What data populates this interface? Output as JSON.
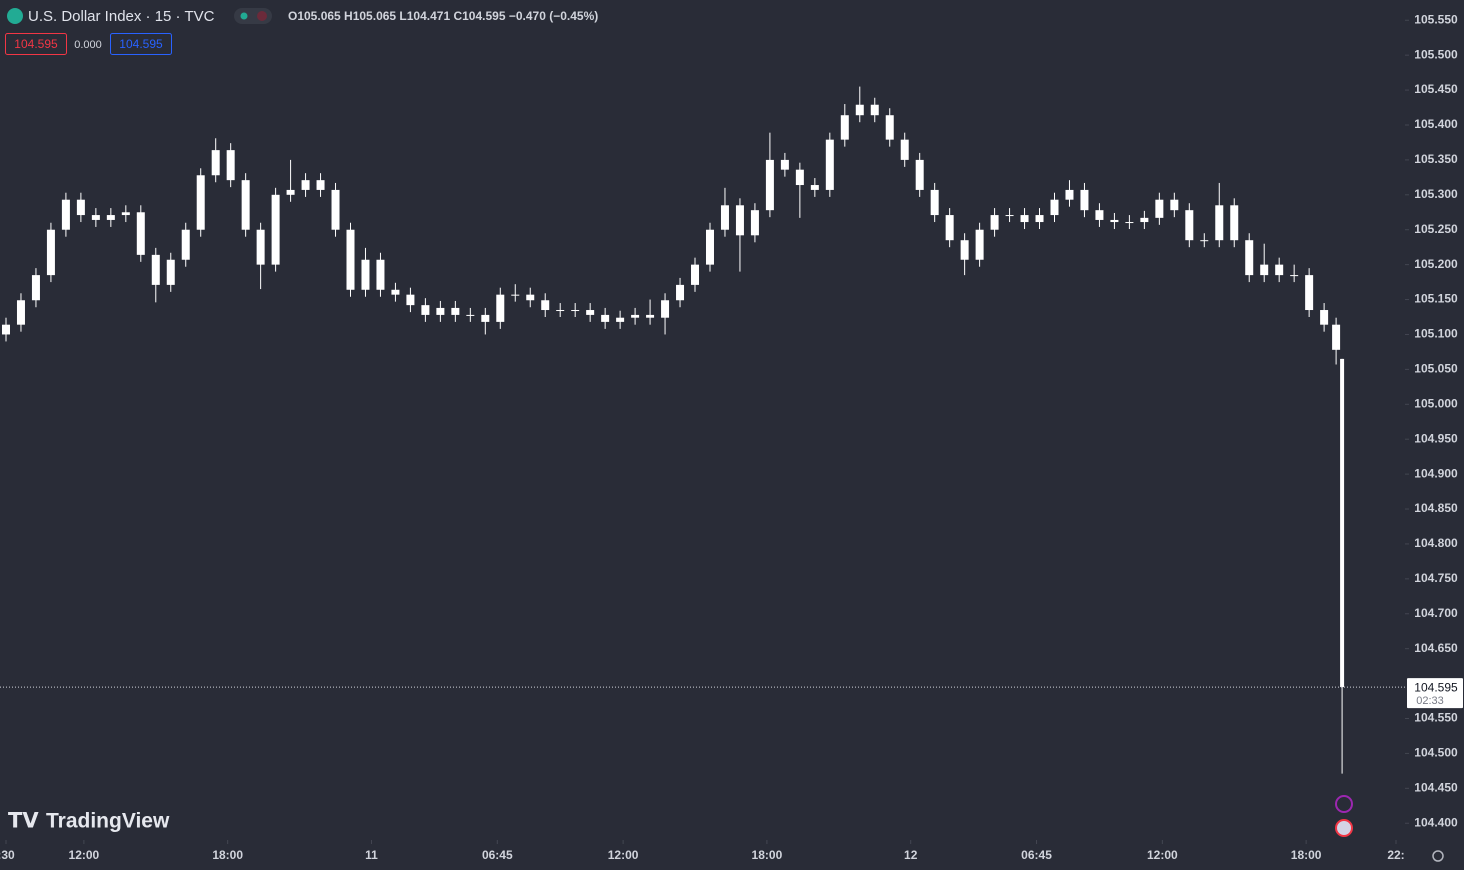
{
  "header": {
    "symbol": "U.S. Dollar Index · 15 · TVC",
    "ohlc": "O105.065 H105.065 L104.471 C104.595 −0.470 (−0.45%)",
    "badges": [
      "104.595",
      "0.000",
      "104.595"
    ]
  },
  "watermark": "TradingView",
  "chart_data": {
    "type": "candlestick",
    "color": "#ffffff",
    "x": [
      -13,
      -10.5,
      -8,
      -5.5,
      -3,
      -0.5,
      2,
      4.5,
      7,
      9.5,
      12,
      14.5,
      17,
      19.5,
      22,
      24.5,
      27,
      29.5,
      32,
      34.5,
      37,
      39.5,
      42,
      44.5,
      47,
      49.5,
      52,
      54.5,
      57,
      59.5,
      62,
      64.5,
      67,
      69.5,
      72,
      74.5,
      77,
      79.5,
      82,
      84.5,
      87,
      89.5,
      92,
      94.5,
      97,
      99.5,
      102,
      104.5,
      107,
      109.5,
      112,
      114.5,
      117,
      119.5,
      122,
      124.5,
      127,
      129.5,
      132,
      134.5,
      137,
      139.5,
      142,
      144.5,
      147,
      149.5,
      152,
      154.5,
      157,
      159.5,
      162,
      164.5,
      167,
      169.5,
      172,
      174.5,
      177,
      179.5,
      182,
      184.5,
      187,
      189.5,
      192,
      194.5,
      197,
      199.5,
      202,
      204.5,
      207,
      209,
      210
    ],
    "open": [
      105.1,
      105.114,
      105.149,
      105.185,
      105.25,
      105.293,
      105.271,
      105.264,
      105.271,
      105.275,
      105.214,
      105.171,
      105.207,
      105.25,
      105.328,
      105.364,
      105.321,
      105.25,
      105.2,
      105.3,
      105.307,
      105.321,
      105.307,
      105.25,
      105.164,
      105.207,
      105.164,
      105.157,
      105.142,
      105.128,
      105.138,
      105.128,
      105.128,
      105.118,
      105.157,
      105.157,
      105.149,
      105.135,
      105.135,
      105.135,
      105.128,
      105.118,
      105.124,
      105.128,
      105.124,
      105.149,
      105.171,
      105.2,
      105.25,
      105.285,
      105.242,
      105.278,
      105.35,
      105.336,
      105.314,
      105.307,
      105.379,
      105.414,
      105.429,
      105.414,
      105.379,
      105.35,
      105.307,
      105.271,
      105.235,
      105.207,
      105.25,
      105.271,
      105.271,
      105.261,
      105.271,
      105.293,
      105.307,
      105.278,
      105.264,
      105.261,
      105.261,
      105.267,
      105.293,
      105.278,
      105.235,
      105.235,
      105.285,
      105.235,
      105.185,
      105.2,
      105.185,
      105.185,
      105.135,
      105.114,
      105.065
    ],
    "high": [
      105.124,
      105.159,
      105.195,
      105.26,
      105.303,
      105.303,
      105.281,
      105.281,
      105.285,
      105.285,
      105.224,
      105.217,
      105.26,
      105.338,
      105.381,
      105.374,
      105.331,
      105.26,
      105.31,
      105.35,
      105.331,
      105.331,
      105.317,
      105.26,
      105.224,
      105.217,
      105.174,
      105.167,
      105.152,
      105.148,
      105.148,
      105.138,
      105.138,
      105.167,
      105.172,
      105.167,
      105.159,
      105.145,
      105.145,
      105.145,
      105.138,
      105.134,
      105.138,
      105.15,
      105.159,
      105.181,
      105.21,
      105.26,
      105.31,
      105.295,
      105.288,
      105.389,
      105.36,
      105.346,
      105.324,
      105.389,
      105.43,
      105.455,
      105.439,
      105.424,
      105.389,
      105.36,
      105.317,
      105.281,
      105.245,
      105.26,
      105.281,
      105.281,
      105.281,
      105.281,
      105.303,
      105.321,
      105.317,
      105.288,
      105.274,
      105.271,
      105.277,
      105.303,
      105.303,
      105.288,
      105.245,
      105.317,
      105.295,
      105.245,
      105.23,
      105.21,
      105.2,
      105.195,
      105.145,
      105.124,
      105.065
    ],
    "low": [
      105.09,
      105.104,
      105.139,
      105.175,
      105.24,
      105.261,
      105.254,
      105.254,
      105.261,
      105.204,
      105.146,
      105.161,
      105.197,
      105.24,
      105.318,
      105.311,
      105.24,
      105.165,
      105.19,
      105.29,
      105.297,
      105.297,
      105.24,
      105.154,
      105.154,
      105.154,
      105.147,
      105.132,
      105.118,
      105.118,
      105.118,
      105.118,
      105.1,
      105.108,
      105.147,
      105.139,
      105.125,
      105.125,
      105.125,
      105.118,
      105.108,
      105.108,
      105.114,
      105.114,
      105.1,
      105.139,
      105.161,
      105.19,
      105.24,
      105.19,
      105.232,
      105.268,
      105.326,
      105.267,
      105.297,
      105.297,
      105.369,
      105.404,
      105.404,
      105.369,
      105.34,
      105.297,
      105.261,
      105.225,
      105.185,
      105.197,
      105.24,
      105.261,
      105.251,
      105.251,
      105.261,
      105.283,
      105.268,
      105.254,
      105.251,
      105.251,
      105.251,
      105.257,
      105.268,
      105.225,
      105.225,
      105.225,
      105.225,
      105.175,
      105.175,
      105.175,
      105.175,
      105.125,
      105.104,
      105.057,
      104.471
    ],
    "close": [
      105.114,
      105.149,
      105.185,
      105.25,
      105.293,
      105.271,
      105.264,
      105.271,
      105.275,
      105.214,
      105.171,
      105.207,
      105.25,
      105.328,
      105.364,
      105.321,
      105.25,
      105.2,
      105.3,
      105.307,
      105.321,
      105.307,
      105.25,
      105.164,
      105.207,
      105.164,
      105.157,
      105.142,
      105.128,
      105.138,
      105.128,
      105.128,
      105.118,
      105.157,
      105.157,
      105.149,
      105.135,
      105.135,
      105.135,
      105.128,
      105.118,
      105.124,
      105.128,
      105.124,
      105.149,
      105.171,
      105.2,
      105.25,
      105.285,
      105.242,
      105.278,
      105.35,
      105.336,
      105.314,
      105.307,
      105.379,
      105.414,
      105.429,
      105.414,
      105.379,
      105.35,
      105.307,
      105.271,
      105.235,
      105.207,
      105.25,
      105.271,
      105.271,
      105.261,
      105.271,
      105.293,
      105.307,
      105.278,
      105.264,
      105.261,
      105.261,
      105.267,
      105.293,
      105.278,
      105.235,
      105.235,
      105.285,
      105.235,
      105.185,
      105.2,
      105.185,
      105.185,
      105.135,
      105.114,
      105.078,
      104.595
    ],
    "xlim": [
      -14,
      220.5
    ],
    "xticks": [
      {
        "value": -13,
        "label": ":30"
      },
      {
        "value": 0,
        "label": "12:00"
      },
      {
        "value": 24,
        "label": "18:00"
      },
      {
        "value": 48,
        "label": "11"
      },
      {
        "value": 69,
        "label": "06:45"
      },
      {
        "value": 90,
        "label": "12:00"
      },
      {
        "value": 114,
        "label": "18:00"
      },
      {
        "value": 138,
        "label": "12"
      },
      {
        "value": 159,
        "label": "06:45"
      },
      {
        "value": 180,
        "label": "12:00"
      },
      {
        "value": 204,
        "label": "18:00"
      },
      {
        "value": 219,
        "label": "22:"
      }
    ],
    "ylim": [
      104.376,
      105.579
    ],
    "yticks": [
      {
        "value": 104.4,
        "label": "104.400"
      },
      {
        "value": 104.45,
        "label": "104.450"
      },
      {
        "value": 104.5,
        "label": "104.500"
      },
      {
        "value": 104.55,
        "label": "104.550"
      },
      {
        "value": 104.65,
        "label": "104.650"
      },
      {
        "value": 104.7,
        "label": "104.700"
      },
      {
        "value": 104.75,
        "label": "104.750"
      },
      {
        "value": 104.8,
        "label": "104.800"
      },
      {
        "value": 104.85,
        "label": "104.850"
      },
      {
        "value": 104.9,
        "label": "104.900"
      },
      {
        "value": 104.95,
        "label": "104.950"
      },
      {
        "value": 105.0,
        "label": "105.000"
      },
      {
        "value": 105.05,
        "label": "105.050"
      },
      {
        "value": 105.1,
        "label": "105.100"
      },
      {
        "value": 105.15,
        "label": "105.150"
      },
      {
        "value": 105.2,
        "label": "105.200"
      },
      {
        "value": 105.25,
        "label": "105.250"
      },
      {
        "value": 105.3,
        "label": "105.300"
      },
      {
        "value": 105.35,
        "label": "105.350"
      },
      {
        "value": 105.4,
        "label": "105.400"
      },
      {
        "value": 105.45,
        "label": "105.450"
      },
      {
        "value": 105.5,
        "label": "105.500"
      },
      {
        "value": 105.55,
        "label": "105.550"
      }
    ],
    "last_price_label": "104.595",
    "countdown": "02:33"
  }
}
